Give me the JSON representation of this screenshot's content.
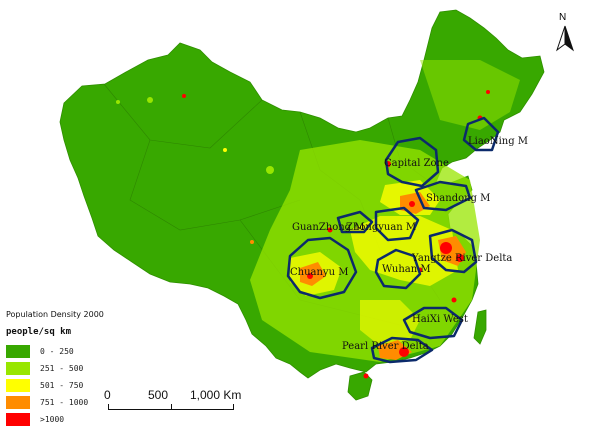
{
  "map": {
    "legend": {
      "title": "Population Density 2000",
      "unit": "people/sq km",
      "classes": [
        {
          "label": "0 - 250",
          "color": "#38a800"
        },
        {
          "label": "251 - 500",
          "color": "#98e600"
        },
        {
          "label": "501 - 750",
          "color": "#ffff00"
        },
        {
          "label": "751 - 1000",
          "color": "#ff8c00"
        },
        {
          "label": ">1000",
          "color": "#ff0000"
        }
      ]
    },
    "scale_bar": {
      "labels": [
        "0",
        "500",
        "1,000 Km"
      ]
    },
    "north_arrow": {
      "letter": "N",
      "icon": "north-arrow-icon"
    },
    "regions": [
      "LiaoNing M",
      "Capital Zone",
      "Shandong M",
      "GuanZhong M",
      "Zhongyuan M",
      "Chuanyu M",
      "Wuhan M",
      "Yangtze River Delta",
      "HaiXi West",
      "Pearl River Delta"
    ],
    "outline_color": "#0b2a6b",
    "land_color": "#38a800"
  }
}
